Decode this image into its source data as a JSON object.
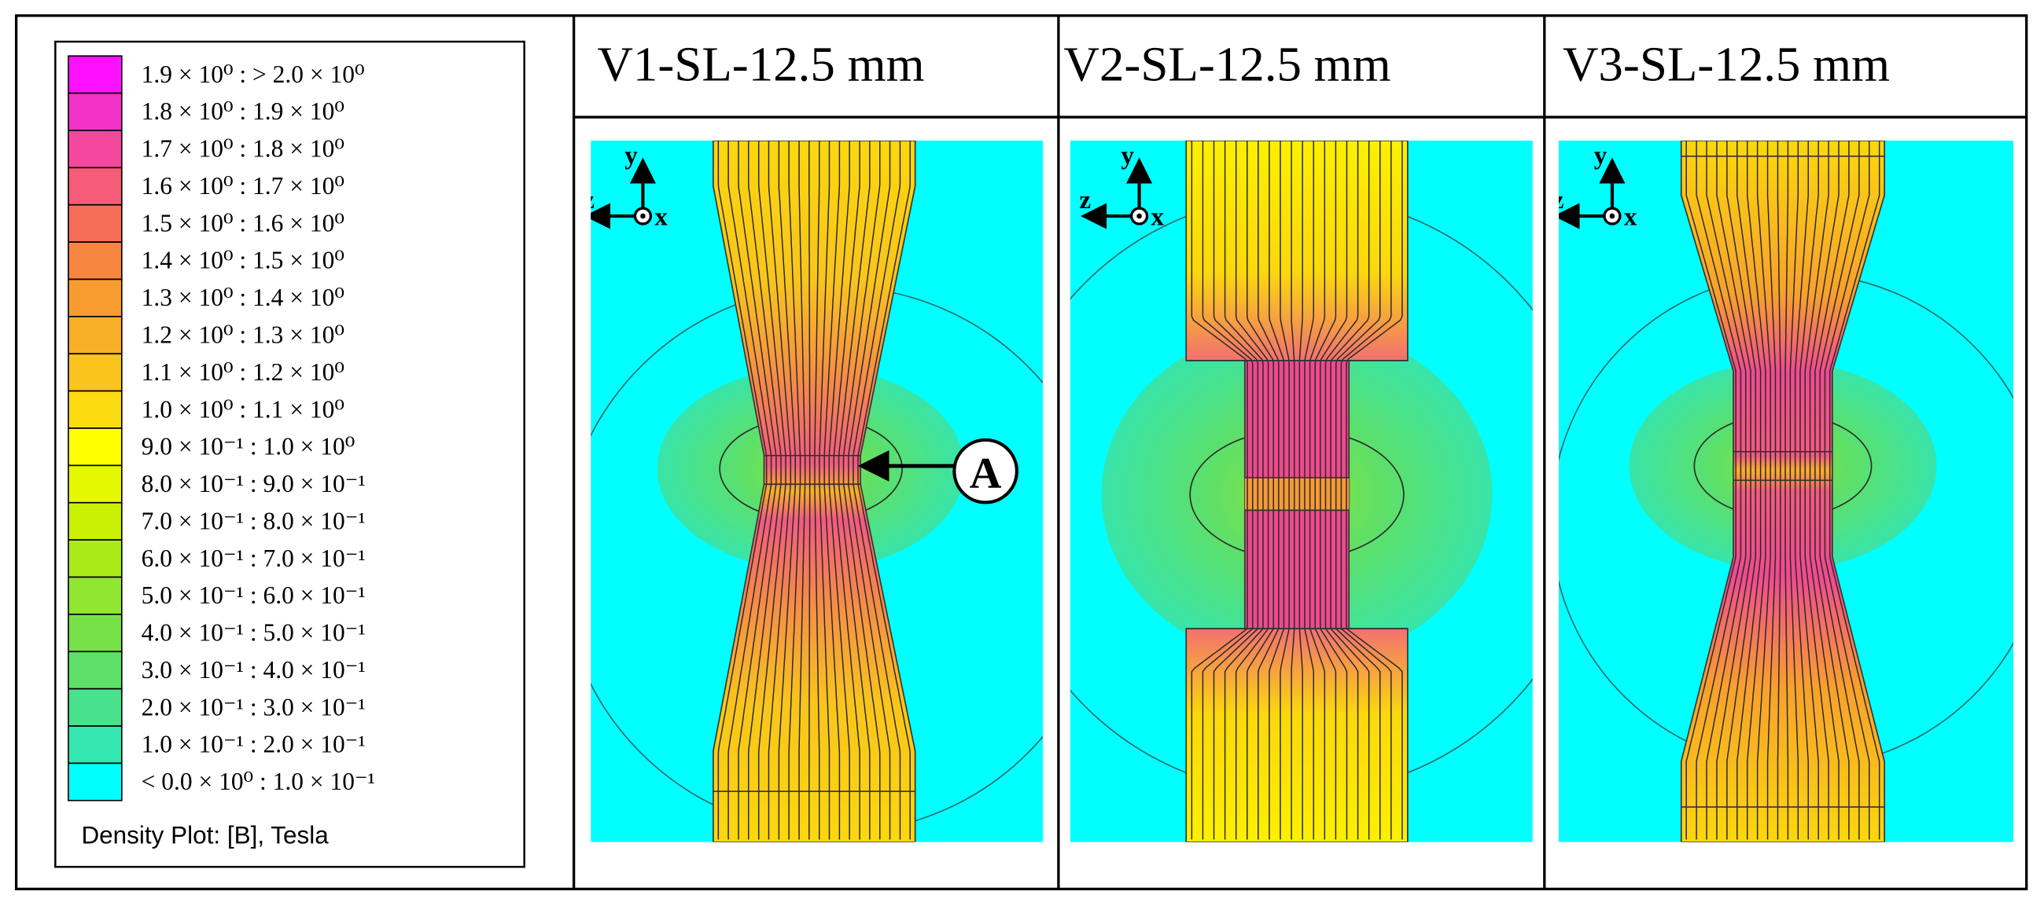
{
  "legend": {
    "entries": [
      {
        "label": "1.9 × 10⁰ : > 2.0 × 10⁰",
        "color": "#ff10ff"
      },
      {
        "label": "1.8 × 10⁰ : 1.9 × 10⁰",
        "color": "#f232c8"
      },
      {
        "label": "1.7 × 10⁰ : 1.8 × 10⁰",
        "color": "#f4479e"
      },
      {
        "label": "1.6 × 10⁰ : 1.7 × 10⁰",
        "color": "#f55c78"
      },
      {
        "label": "1.5 × 10⁰ : 1.6 × 10⁰",
        "color": "#f66e58"
      },
      {
        "label": "1.4 × 10⁰ : 1.5 × 10⁰",
        "color": "#f68640"
      },
      {
        "label": "1.3 × 10⁰ : 1.4 × 10⁰",
        "color": "#f89c30"
      },
      {
        "label": "1.2 × 10⁰ : 1.3 × 10⁰",
        "color": "#f8b028"
      },
      {
        "label": "1.1 × 10⁰ : 1.2 × 10⁰",
        "color": "#fac41e"
      },
      {
        "label": "1.0 × 10⁰ : 1.1 × 10⁰",
        "color": "#fcdc10"
      },
      {
        "label": "9.0 × 10⁻¹ : 1.0 × 10⁰",
        "color": "#ffff00"
      },
      {
        "label": "8.0 × 10⁻¹ : 9.0 × 10⁻¹",
        "color": "#e4f800"
      },
      {
        "label": "7.0 × 10⁻¹ : 8.0 × 10⁻¹",
        "color": "#c8f000"
      },
      {
        "label": "6.0 × 10⁻¹ : 7.0 × 10⁻¹",
        "color": "#aaea18"
      },
      {
        "label": "5.0 × 10⁻¹ : 6.0 × 10⁻¹",
        "color": "#90e630"
      },
      {
        "label": "4.0 × 10⁻¹ : 5.0 × 10⁻¹",
        "color": "#76e248"
      },
      {
        "label": "3.0 × 10⁻¹ : 4.0 × 10⁻¹",
        "color": "#5ee068"
      },
      {
        "label": "2.0 × 10⁻¹ : 3.0 × 10⁻¹",
        "color": "#48e28c"
      },
      {
        "label": "1.0 × 10⁻¹ : 2.0 × 10⁻¹",
        "color": "#34e6b0"
      },
      {
        "label": "< 0.0 × 10⁰ : 1.0 × 10⁻¹",
        "color": "#00ffff"
      }
    ],
    "caption": "Density Plot: [B], Tesla"
  },
  "axes": {
    "y": "y",
    "z": "z",
    "x": "x"
  },
  "panels": [
    {
      "title": "V1-SL-12.5 mm",
      "annotation": "A"
    },
    {
      "title": "V2-SL-12.5 mm"
    },
    {
      "title": "V3-SL-12.5 mm"
    }
  ]
}
